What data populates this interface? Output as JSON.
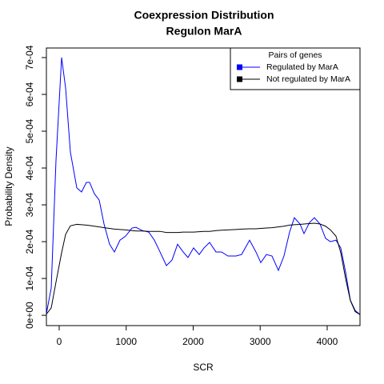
{
  "chart_data": {
    "type": "line",
    "title": "Coexpression Distribution",
    "subtitle": "Regulon MarA",
    "x_label": "SCR",
    "y_label": "Probability Density",
    "legend_title": "Pairs of genes",
    "legend_position": "top-right",
    "x": [
      -191,
      -119,
      -48,
      36,
      96,
      167,
      263,
      334,
      406,
      454,
      525,
      597,
      669,
      752,
      824,
      907,
      991,
      1087,
      1146,
      1242,
      1337,
      1421,
      1505,
      1600,
      1684,
      1767,
      1851,
      1922,
      2006,
      2090,
      2161,
      2245,
      2340,
      2424,
      2519,
      2639,
      2722,
      2842,
      2937,
      3009,
      3093,
      3176,
      3272,
      3355,
      3439,
      3510,
      3594,
      3654,
      3737,
      3809,
      3893,
      3976,
      4048,
      4131,
      4203,
      4275,
      4346,
      4418,
      4490
    ],
    "series": [
      {
        "name": "Regulated by  MarA",
        "color": "#0000ff",
        "values": [
          4.3e-06,
          7.4e-05,
          0.00042,
          0.0007,
          0.000617,
          0.000443,
          0.000346,
          0.000335,
          0.000361,
          0.000361,
          0.00033,
          0.000313,
          0.000248,
          0.000193,
          0.000172,
          0.000204,
          0.000215,
          0.000237,
          0.000239,
          0.00023,
          0.000226,
          0.000204,
          0.000172,
          0.000135,
          0.00015,
          0.000193,
          0.000172,
          0.000157,
          0.000183,
          0.000165,
          0.000183,
          0.000198,
          0.000172,
          0.000172,
          0.000161,
          0.000161,
          0.000165,
          0.000204,
          0.000172,
          0.000143,
          0.000165,
          0.000161,
          0.000122,
          0.000161,
          0.000226,
          0.000265,
          0.000248,
          0.000222,
          0.000252,
          0.000265,
          0.000248,
          0.000209,
          0.0002,
          0.000204,
          0.000183,
          0.000117,
          4.1e-05,
          1.3e-05,
          2e-06
        ]
      },
      {
        "name": "Not regulated by  MarA",
        "color": "#000000",
        "values": [
          3e-06,
          2e-05,
          9e-05,
          0.00017,
          0.00022,
          0.000243,
          0.000247,
          0.000246,
          0.000245,
          0.000244,
          0.000242,
          0.00024,
          0.000238,
          0.000236,
          0.000234,
          0.000233,
          0.000232,
          0.00023,
          0.000229,
          0.000229,
          0.000228,
          0.000228,
          0.000228,
          0.000225,
          0.000225,
          0.000225,
          0.000226,
          0.000226,
          0.000226,
          0.000227,
          0.000228,
          0.000228,
          0.00023,
          0.000231,
          0.000232,
          0.000233,
          0.000234,
          0.000235,
          0.000235,
          0.000236,
          0.000237,
          0.000238,
          0.00024,
          0.000242,
          0.000245,
          0.000246,
          0.000247,
          0.000248,
          0.000249,
          0.00025,
          0.000248,
          0.000242,
          0.000232,
          0.000215,
          0.00017,
          0.0001,
          4e-05,
          1e-05,
          2e-06
        ]
      }
    ],
    "xlim": [
      -191,
      4490
    ],
    "ylim": [
      -2.8e-05,
      0.000726
    ],
    "xticks": [
      0,
      1000,
      2000,
      3000,
      4000
    ],
    "yticks": [
      {
        "value": 0,
        "label": "0e+00"
      },
      {
        "value": 0.0001,
        "label": "1e-04"
      },
      {
        "value": 0.0002,
        "label": "2e-04"
      },
      {
        "value": 0.0003,
        "label": "3e-04"
      },
      {
        "value": 0.0004,
        "label": "4e-04"
      },
      {
        "value": 0.0005,
        "label": "5e-04"
      },
      {
        "value": 0.0006,
        "label": "6e-04"
      },
      {
        "value": 0.0007,
        "label": "7e-04"
      }
    ],
    "grid": false
  }
}
